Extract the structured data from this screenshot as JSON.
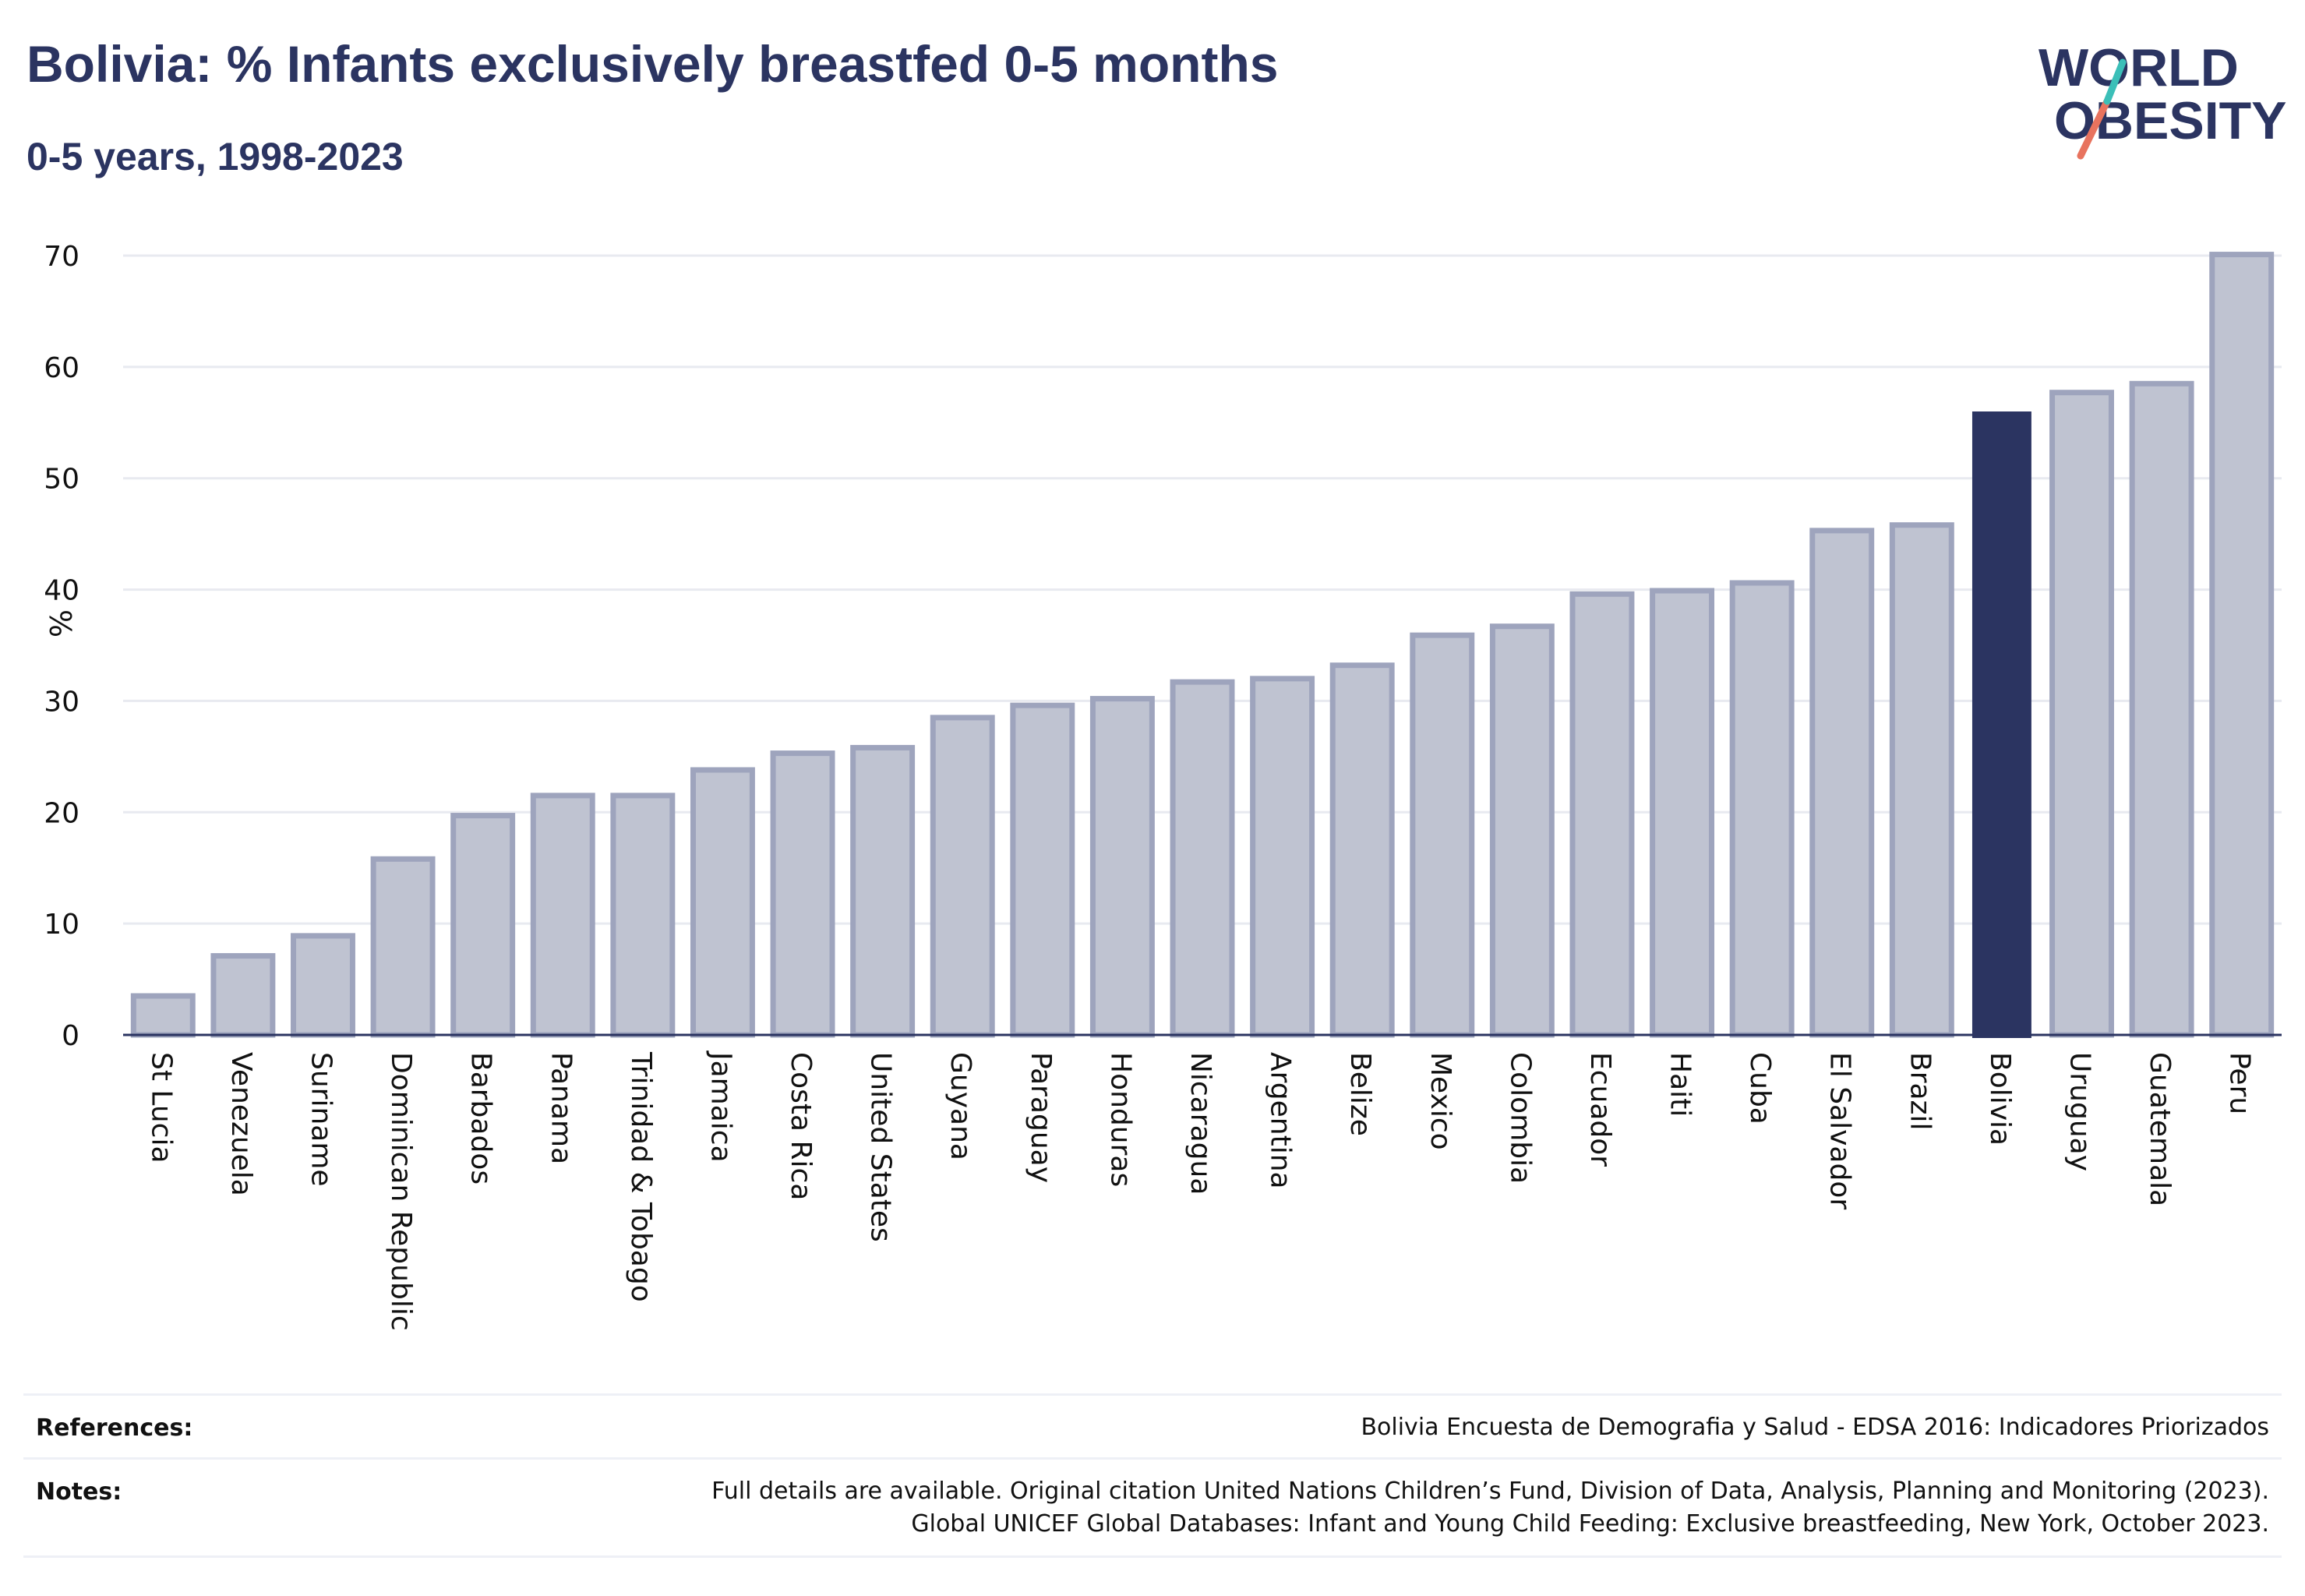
{
  "header": {
    "title": "Bolivia: % Infants exclusively breastfed 0-5 months",
    "subtitle": "0-5 years, 1998-2023",
    "logo_text": "WORLD OBESITY"
  },
  "colors": {
    "accent": "#2b3461",
    "bar_fill": "#bfc3d1",
    "bar_stroke": "#9ea4bd",
    "grid": "#e8eaf0",
    "logo_teal": "#3bbfb8",
    "logo_coral": "#e8735e"
  },
  "chart_data": {
    "type": "bar",
    "title": "Bolivia: % Infants exclusively breastfed 0-5 months",
    "subtitle": "0-5 years, 1998-2023",
    "xlabel": "",
    "ylabel": "%",
    "ylim": [
      0,
      70
    ],
    "yticks": [
      0,
      10,
      20,
      30,
      40,
      50,
      60,
      70
    ],
    "grid": true,
    "highlight": "Bolivia",
    "categories": [
      "St Lucia",
      "Venezuela",
      "Suriname",
      "Dominican Republic",
      "Barbados",
      "Panama",
      "Trinidad & Tobago",
      "Jamaica",
      "Costa Rica",
      "United States",
      "Guyana",
      "Paraguay",
      "Honduras",
      "Nicaragua",
      "Argentina",
      "Belize",
      "Mexico",
      "Colombia",
      "Ecuador",
      "Haiti",
      "Cuba",
      "El Salvador",
      "Brazil",
      "Bolivia",
      "Uruguay",
      "Guatemala",
      "Peru"
    ],
    "values": [
      3.5,
      7.1,
      8.9,
      15.8,
      19.7,
      21.5,
      21.5,
      23.8,
      25.3,
      25.8,
      28.5,
      29.6,
      30.2,
      31.7,
      32.0,
      33.2,
      35.9,
      36.7,
      39.6,
      39.9,
      40.6,
      45.3,
      45.8,
      56.0,
      57.7,
      58.5,
      70.1
    ]
  },
  "footer": {
    "references_label": "References:",
    "references_text": "Bolivia Encuesta de Demografia y Salud - EDSA 2016: Indicadores Priorizados",
    "notes_label": "Notes:",
    "notes_line1": "Full details are available. Original citation United Nations Children’s Fund, Division of Data, Analysis, Planning and Monitoring (2023).",
    "notes_line2": "Global UNICEF Global Databases: Infant and Young Child Feeding: Exclusive breastfeeding, New York, October 2023."
  }
}
